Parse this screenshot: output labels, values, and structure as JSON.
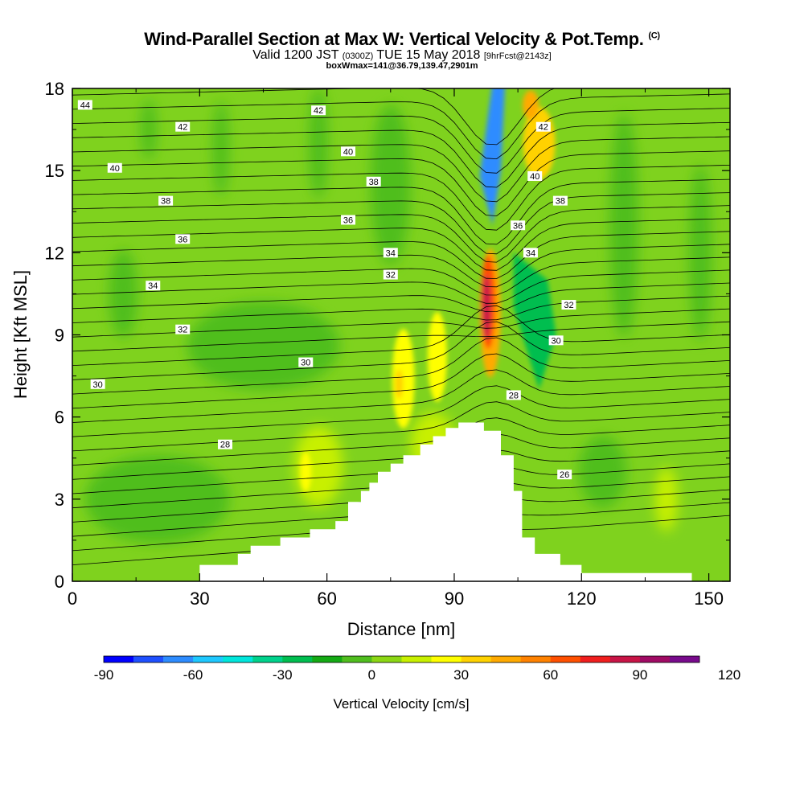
{
  "header": {
    "title": "Wind-Parallel Section at Max W: Vertical Velocity & Pot.Temp.",
    "title_unit": "(C)",
    "valid_prefix": "Valid 1200 JST",
    "valid_utc": "(0300Z)",
    "valid_date": "TUE 15 May 2018",
    "valid_fcst": "[9hrFcst@2143z]",
    "box_info": "boxWmax=141@36.79,139.47,2901m"
  },
  "chart_data": {
    "type": "heatmap",
    "title": "Wind-Parallel Section at Max W: Vertical Velocity & Pot.Temp.",
    "xlabel": "Distance [nm]",
    "ylabel": "Height [Kft MSL]",
    "xlim": [
      0,
      155
    ],
    "ylim": [
      0,
      18
    ],
    "x_ticks": [
      0,
      30,
      60,
      90,
      120,
      150
    ],
    "y_ticks": [
      0,
      3,
      6,
      9,
      12,
      15,
      18
    ],
    "colorbar": {
      "label": "Vertical Velocity [cm/s]",
      "ticks": [
        -90,
        -60,
        -30,
        0,
        30,
        60,
        90,
        120
      ],
      "colors": [
        "#0000ff",
        "#1e50ff",
        "#2d8cff",
        "#1ec8ff",
        "#00e6dc",
        "#00d28c",
        "#00be50",
        "#14aa14",
        "#50be1e",
        "#8cd714",
        "#c8f000",
        "#ffff00",
        "#ffd200",
        "#ffaa00",
        "#ff8200",
        "#ff5000",
        "#f01e1e",
        "#c81446",
        "#a00a64",
        "#780a8c"
      ]
    },
    "terrain_profile": {
      "x_nm": [
        30,
        30,
        39,
        39,
        42,
        42,
        49,
        49,
        56,
        56,
        62,
        62,
        65,
        65,
        68,
        68,
        70,
        70,
        72,
        72,
        75,
        75,
        78,
        78,
        82,
        82,
        85,
        85,
        88,
        88,
        91,
        91,
        97,
        97,
        101,
        101,
        104,
        104,
        106,
        106,
        109,
        109,
        115,
        115,
        120,
        120,
        146,
        146
      ],
      "height_kft": [
        0.3,
        0.6,
        0.6,
        1.0,
        1.0,
        1.3,
        1.3,
        1.6,
        1.6,
        1.9,
        1.9,
        2.2,
        2.2,
        2.9,
        2.9,
        3.3,
        3.3,
        3.6,
        3.6,
        4.0,
        4.0,
        4.3,
        4.3,
        4.6,
        4.6,
        5.0,
        5.0,
        5.3,
        5.3,
        5.6,
        5.6,
        5.8,
        5.8,
        5.5,
        5.5,
        4.6,
        4.6,
        3.3,
        3.3,
        1.6,
        1.6,
        1.0,
        1.0,
        0.6,
        0.6,
        0.3,
        0.3,
        0.3
      ]
    },
    "theta_contours": [
      {
        "value": 26,
        "label_at": [
          116,
          3.9
        ]
      },
      {
        "value": 28,
        "label_at": [
          104,
          6.8
        ]
      },
      {
        "value": 28,
        "label_at": [
          36,
          5.0
        ]
      },
      {
        "value": 30,
        "label_at": [
          6,
          7.2
        ]
      },
      {
        "value": 30,
        "label_at": [
          55,
          8.0
        ]
      },
      {
        "value": 30,
        "label_at": [
          114,
          8.8
        ]
      },
      {
        "value": 32,
        "label_at": [
          26,
          9.2
        ]
      },
      {
        "value": 32,
        "label_at": [
          75,
          11.2
        ]
      },
      {
        "value": 32,
        "label_at": [
          117,
          10.1
        ]
      },
      {
        "value": 34,
        "label_at": [
          19,
          10.8
        ]
      },
      {
        "value": 34,
        "label_at": [
          75,
          12.0
        ]
      },
      {
        "value": 34,
        "label_at": [
          108,
          12.0
        ]
      },
      {
        "value": 36,
        "label_at": [
          26,
          12.5
        ]
      },
      {
        "value": 36,
        "label_at": [
          65,
          13.2
        ]
      },
      {
        "value": 36,
        "label_at": [
          105,
          13.0
        ]
      },
      {
        "value": 38,
        "label_at": [
          22,
          13.9
        ]
      },
      {
        "value": 38,
        "label_at": [
          71,
          14.6
        ]
      },
      {
        "value": 38,
        "label_at": [
          115,
          13.9
        ]
      },
      {
        "value": 40,
        "label_at": [
          10,
          15.1
        ]
      },
      {
        "value": 40,
        "label_at": [
          65,
          15.7
        ]
      },
      {
        "value": 40,
        "label_at": [
          109,
          14.8
        ]
      },
      {
        "value": 42,
        "label_at": [
          26,
          16.6
        ]
      },
      {
        "value": 42,
        "label_at": [
          58,
          17.2
        ]
      },
      {
        "value": 42,
        "label_at": [
          111,
          16.6
        ]
      },
      {
        "value": 44,
        "label_at": [
          3,
          17.4
        ]
      }
    ]
  }
}
